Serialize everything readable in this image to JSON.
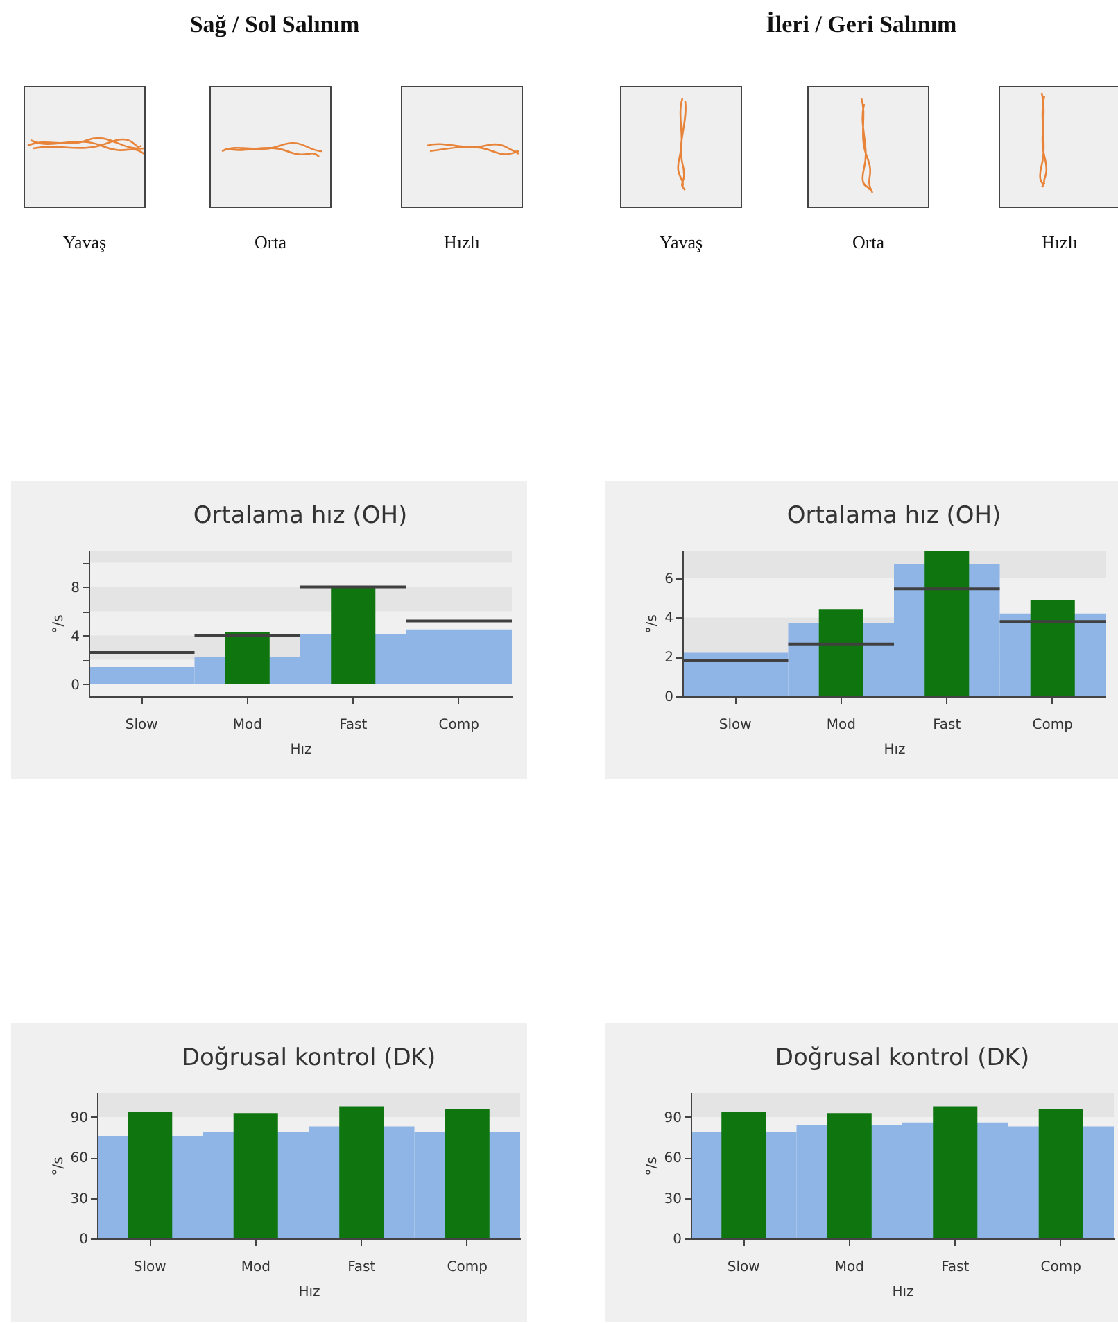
{
  "chart_data": [
    {
      "type": "other",
      "title": "Sağ / Sol Salınım",
      "annotations": [
        "Yavaş",
        "Orta",
        "Hızlı"
      ]
    },
    {
      "type": "other",
      "title": "İleri / Geri Salınım",
      "annotations": [
        "Yavaş",
        "Orta",
        "Hızlı"
      ]
    },
    {
      "type": "bar",
      "title": "Ortalama hız (OH)",
      "xlabel": "Hız",
      "ylabel": "°/s",
      "categories": [
        "Slow",
        "Mod",
        "Fast",
        "Comp"
      ],
      "ylim": [
        -1,
        11
      ],
      "yticks": [
        0,
        {
          "value": 2,
          "label": null
        },
        4,
        {
          "value": 6,
          "label": null
        },
        8,
        {
          "value": 10,
          "label": null
        }
      ],
      "bands": [
        {
          "axis": "y",
          "from": 10,
          "to": 11,
          "color": "#e4e4e4"
        },
        {
          "axis": "y",
          "from": 6,
          "to": 8,
          "color": "#e4e4e4"
        },
        {
          "axis": "y",
          "from": 2,
          "to": 4,
          "color": "#e4e4e4"
        }
      ],
      "series": [
        {
          "type": "bar",
          "color": "#8fb4e6",
          "values": [
            1.4,
            2.2,
            4.1,
            4.5
          ]
        },
        {
          "type": "bar",
          "color": "#0f760f",
          "values": [
            null,
            4.3,
            8.0,
            null
          ]
        }
      ],
      "ref_lines": [
        {
          "axis": "y",
          "value": 2.6,
          "color": "#404040"
        },
        {
          "axis": "y",
          "value": 4.0,
          "color": "#404040"
        },
        {
          "axis": "y",
          "value": 8.0,
          "color": "#404040"
        },
        {
          "axis": "y",
          "value": 5.2,
          "color": "#404040"
        }
      ]
    },
    {
      "type": "bar",
      "title": "Ortalama hız (OH)",
      "xlabel": "Hız",
      "ylabel": "°/s",
      "categories": [
        "Slow",
        "Mod",
        "Fast",
        "Comp"
      ],
      "ylim": [
        0,
        7.4
      ],
      "yticks": [
        0,
        2,
        4,
        6
      ],
      "bands": [
        {
          "axis": "y",
          "from": 6,
          "to": 7.4,
          "color": "#e4e4e4"
        },
        {
          "axis": "y",
          "from": 2,
          "to": 4,
          "color": "#e4e4e4"
        }
      ],
      "series": [
        {
          "type": "bar",
          "color": "#8fb4e6",
          "values": [
            2.2,
            3.7,
            6.7,
            4.2
          ]
        },
        {
          "type": "bar",
          "color": "#0f760f",
          "values": [
            null,
            4.4,
            7.4,
            4.9
          ]
        }
      ],
      "ref_lines": [
        {
          "axis": "y",
          "value": 1.8,
          "color": "#404040"
        },
        {
          "axis": "y",
          "value": 2.65,
          "color": "#404040"
        },
        {
          "axis": "y",
          "value": 5.45,
          "color": "#404040"
        },
        {
          "axis": "y",
          "value": 3.8,
          "color": "#404040"
        }
      ]
    },
    {
      "type": "bar",
      "title": "Doğrusal kontrol (DK)",
      "xlabel": "Hız",
      "ylabel": "°/s",
      "categories": [
        "Slow",
        "Mod",
        "Fast",
        "Comp"
      ],
      "ylim": [
        0,
        108
      ],
      "yticks": [
        0,
        30,
        60,
        90
      ],
      "bands": [
        {
          "axis": "y",
          "from": 90,
          "to": 108,
          "color": "#e4e4e4"
        }
      ],
      "series": [
        {
          "type": "bar",
          "color": "#8fb4e6",
          "values": [
            76,
            79,
            83,
            79
          ]
        },
        {
          "type": "bar",
          "color": "#0f760f",
          "values": [
            94,
            93,
            98,
            96
          ]
        }
      ]
    },
    {
      "type": "bar",
      "title": "Doğrusal kontrol (DK)",
      "xlabel": "Hız",
      "ylabel": "°/s",
      "categories": [
        "Slow",
        "Mod",
        "Fast",
        "Comp"
      ],
      "ylim": [
        0,
        108
      ],
      "yticks": [
        0,
        30,
        60,
        90
      ],
      "bands": [
        {
          "axis": "y",
          "from": 90,
          "to": 108,
          "color": "#e4e4e4"
        }
      ],
      "series": [
        {
          "type": "bar",
          "color": "#8fb4e6",
          "values": [
            79,
            84,
            86,
            83
          ]
        },
        {
          "type": "bar",
          "color": "#0f760f",
          "values": [
            94,
            93,
            98,
            96
          ]
        }
      ]
    }
  ]
}
